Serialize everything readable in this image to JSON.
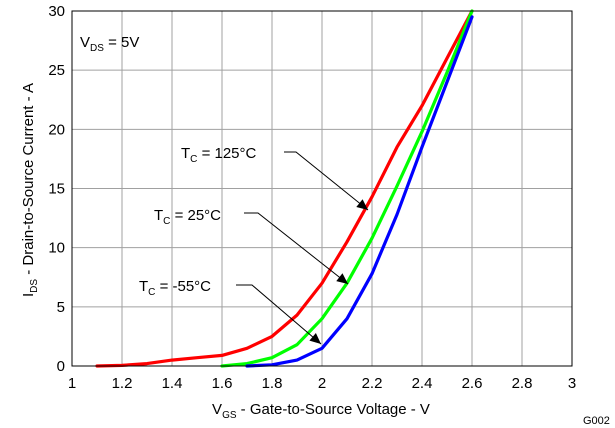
{
  "chart_data": {
    "type": "line",
    "xlabel": {
      "main": "V",
      "sub": "GS",
      "rest": " - Gate-to-Source Voltage - V"
    },
    "ylabel": {
      "main": "I",
      "sub": "DS",
      "rest": " - Drain-to-Source Current - A"
    },
    "xlim": [
      1,
      3
    ],
    "ylim": [
      0,
      30
    ],
    "xticks": [
      "1",
      "1.2",
      "1.4",
      "1.6",
      "1.8",
      "2",
      "2.2",
      "2.4",
      "2.6",
      "2.8",
      "3"
    ],
    "yticks": [
      "0",
      "5",
      "10",
      "15",
      "20",
      "25",
      "30"
    ],
    "grid": true,
    "figure_id": "G002",
    "condition": {
      "main": "V",
      "sub": "DS",
      "rest": " = 5V"
    },
    "series": [
      {
        "name": "T_C = 125°C",
        "label": {
          "main": "T",
          "sub": "C",
          "rest": " = 125°C"
        },
        "color": "#ff0000",
        "x": [
          1.1,
          1.2,
          1.3,
          1.4,
          1.5,
          1.6,
          1.7,
          1.8,
          1.9,
          2.0,
          2.1,
          2.2,
          2.3,
          2.4,
          2.5,
          2.6
        ],
        "y": [
          0,
          0.05,
          0.2,
          0.5,
          0.7,
          0.9,
          1.5,
          2.5,
          4.3,
          7.0,
          10.5,
          14.3,
          18.5,
          22.0,
          26.0,
          30.0
        ]
      },
      {
        "name": "T_C = 25°C",
        "label": {
          "main": "T",
          "sub": "C",
          "rest": " = 25°C"
        },
        "color": "#00ff00",
        "x": [
          1.6,
          1.7,
          1.8,
          1.9,
          2.0,
          2.1,
          2.2,
          2.3,
          2.4,
          2.5,
          2.6
        ],
        "y": [
          0,
          0.2,
          0.7,
          1.8,
          4.0,
          7.0,
          10.8,
          15.2,
          19.8,
          24.8,
          30.0
        ]
      },
      {
        "name": "T_C = -55°C",
        "label": {
          "main": "T",
          "sub": "C",
          "rest": " = -55°C"
        },
        "color": "#0000ff",
        "x": [
          1.7,
          1.8,
          1.9,
          2.0,
          2.1,
          2.2,
          2.3,
          2.4,
          2.5,
          2.6
        ],
        "y": [
          0,
          0.1,
          0.5,
          1.5,
          4.0,
          7.8,
          12.8,
          18.5,
          24.0,
          29.5
        ]
      }
    ]
  }
}
